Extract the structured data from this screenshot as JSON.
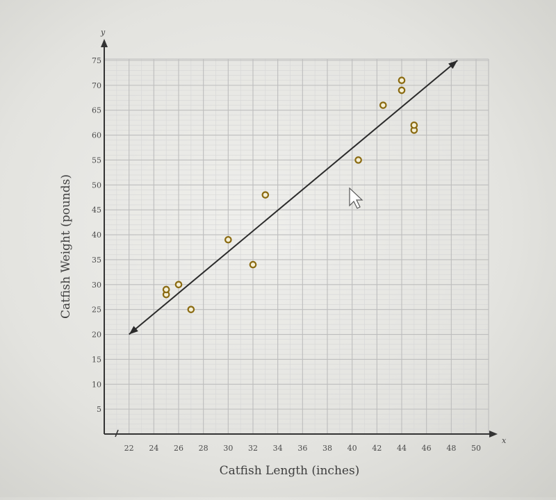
{
  "chart_data": {
    "type": "scatter",
    "title": "",
    "xlabel": "Catfish Length (inches)",
    "ylabel": "Catfish Weight (pounds)",
    "x_axis_letter": "x",
    "y_axis_letter": "y",
    "xlim": [
      20,
      50
    ],
    "ylim": [
      0,
      75
    ],
    "xticks": [
      22,
      24,
      26,
      28,
      30,
      32,
      34,
      36,
      38,
      40,
      42,
      44,
      46,
      48,
      50
    ],
    "yticks": [
      5,
      10,
      15,
      20,
      25,
      30,
      35,
      40,
      45,
      50,
      55,
      60,
      65,
      70,
      75
    ],
    "grid": true,
    "series": [
      {
        "type": "scatter",
        "points": [
          {
            "x": 25,
            "y": 28
          },
          {
            "x": 25,
            "y": 29
          },
          {
            "x": 26,
            "y": 30
          },
          {
            "x": 27,
            "y": 25
          },
          {
            "x": 30,
            "y": 39
          },
          {
            "x": 32,
            "y": 34
          },
          {
            "x": 33,
            "y": 48
          },
          {
            "x": 40.5,
            "y": 55
          },
          {
            "x": 42.5,
            "y": 66
          },
          {
            "x": 44,
            "y": 69
          },
          {
            "x": 44,
            "y": 71
          },
          {
            "x": 45,
            "y": 61
          },
          {
            "x": 45,
            "y": 62
          }
        ],
        "color": "#8a6a10"
      },
      {
        "type": "line",
        "points": [
          {
            "x": 22,
            "y": 20
          },
          {
            "x": 48.5,
            "y": 75
          }
        ],
        "color": "#2b2b2b",
        "arrows": "both"
      }
    ]
  }
}
